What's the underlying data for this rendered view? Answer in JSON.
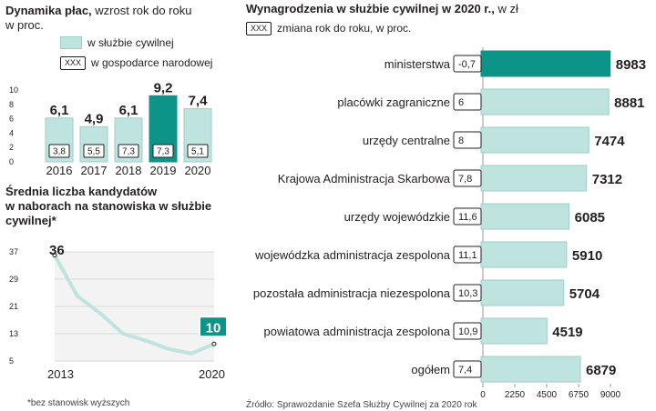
{
  "colors": {
    "bar": "#bfe3de",
    "bar_stroke": "#9ccfc8",
    "highlight": "#0d9488",
    "text": "#231f20",
    "grid": "#d9d9d9"
  },
  "wages_panel": {
    "title_bold": "Dynamika płac,",
    "title_rest": " wzrost rok do roku",
    "title_line2": "w proc.",
    "legend_civil": "w służbie cywilnej",
    "legend_box": "XXX",
    "legend_economy": "w gospodarce narodowej"
  },
  "candidates_panel": {
    "title_line1": "Średnia liczba kandydatów",
    "title_line2": "w naborach na stanowiska w służbie",
    "title_line3": "cywilnej*"
  },
  "salary_panel": {
    "title_bold": "Wynagrodzenia w służbie cywilnej w 2020 r.,",
    "title_rest": " w zł",
    "legend_box": "XXX",
    "legend_text": "zmiana rok do roku, w proc."
  },
  "footnote": "*bez stanowisk wyższych",
  "source": "Źródło: Sprawozdanie Szefa Służby Cywilnej za 2020 rok",
  "chart_data": [
    {
      "type": "bar",
      "categories": [
        "2016",
        "2017",
        "2018",
        "2019",
        "2020"
      ],
      "series": [
        {
          "name": "w służbie cywilnej",
          "values": [
            6.1,
            4.9,
            6.1,
            9.2,
            7.4
          ]
        },
        {
          "name": "w gospodarce narodowej",
          "values": [
            3.8,
            5.5,
            7.3,
            7.3,
            5.1
          ]
        }
      ],
      "value_labels": [
        "6,1",
        "4,9",
        "6,1",
        "9,2",
        "7,4"
      ],
      "box_labels": [
        "3,8",
        "5,5",
        "7,3",
        "7,3",
        "5,1"
      ],
      "highlight": "2019",
      "yticks": [
        "10",
        "8",
        "6",
        "4",
        "2",
        "0"
      ],
      "ylim": [
        0,
        10
      ]
    },
    {
      "type": "line",
      "x": [
        2013,
        2014,
        2015,
        2016,
        2017,
        2018,
        2019,
        2020
      ],
      "values": [
        36,
        24,
        19,
        13,
        11,
        8.5,
        7.2,
        10
      ],
      "start_label": "36",
      "end_label": "10",
      "x_start_label": "2013",
      "x_end_label": "2020",
      "yticks": [
        "37",
        "29",
        "21",
        "13",
        "5"
      ],
      "ylim": [
        5,
        37
      ]
    },
    {
      "type": "bar",
      "orientation": "horizontal",
      "categories": [
        "ministerstwa",
        "placówki zagraniczne",
        "urzędy centralne",
        "Krajowa Administracja Skarbowa",
        "urzędy wojewódzkie",
        "wojewódzka administracja zespolona",
        "pozostała administracja niezespolona",
        "powiatowa administracja zespolona",
        "ogółem"
      ],
      "values": [
        8983,
        8881,
        7474,
        7312,
        6085,
        5910,
        5704,
        4519,
        6879
      ],
      "value_labels": [
        "8983",
        "8881",
        "7474",
        "7312",
        "6085",
        "5910",
        "5704",
        "4519",
        "6879"
      ],
      "changes": [
        "-0,7",
        "6",
        "8",
        "7,8",
        "11,6",
        "11,1",
        "10,3",
        "10,9",
        "7,4"
      ],
      "highlight": "ministerstwa",
      "xticks": [
        "0",
        "2250",
        "4500",
        "6750",
        "9000"
      ],
      "xlim": [
        0,
        9000
      ]
    }
  ]
}
